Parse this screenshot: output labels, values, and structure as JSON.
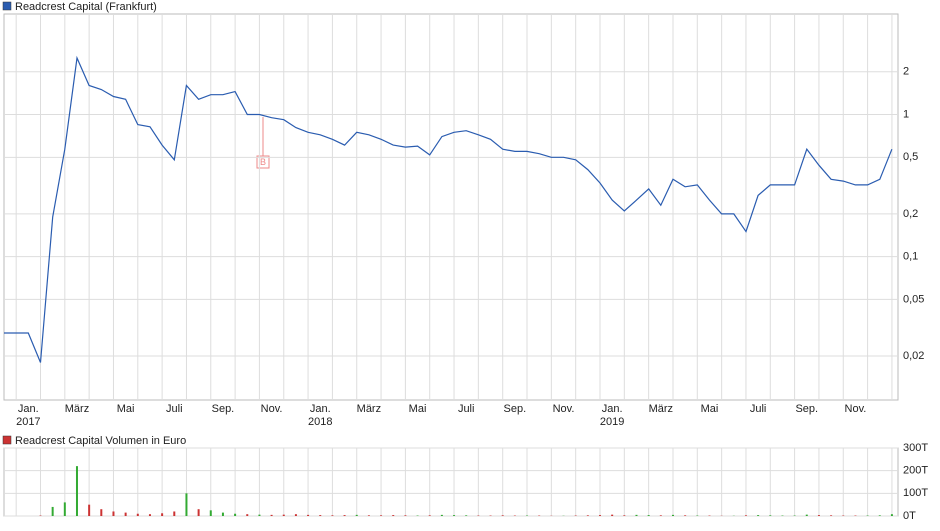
{
  "chart_data": [
    {
      "type": "line",
      "title": "Readcrest Capital (Frankfurt)",
      "annotation": "B",
      "categories": [
        null,
        null,
        "Jan.",
        null,
        null,
        null,
        "März",
        null,
        null,
        null,
        "Mai",
        null,
        null,
        null,
        "Juli",
        null,
        null,
        null,
        "Sep.",
        null,
        null,
        null,
        "Nov.",
        null,
        null,
        null,
        "Jan.",
        null,
        null,
        null,
        "März",
        null,
        null,
        null,
        "Mai",
        null,
        null,
        null,
        "Juli",
        null,
        null,
        null,
        "Sep.",
        null,
        null,
        null,
        "Nov.",
        null,
        null,
        null,
        "Jan.",
        null,
        null,
        null,
        "März",
        null,
        null,
        null,
        "Mai",
        null,
        null,
        null,
        "Juli",
        null,
        null,
        null,
        "Sep.",
        null,
        null,
        null,
        "Nov.",
        null,
        null,
        null
      ],
      "year_labels": [
        "2017",
        "2018",
        "2019"
      ],
      "series": [
        {
          "name": "Readcrest Capital (Frankfurt)",
          "color": "#2a5cb0",
          "values": [
            0.029,
            0.029,
            0.029,
            0.018,
            0.19,
            0.57,
            2.5,
            1.6,
            1.5,
            1.34,
            1.28,
            0.85,
            0.82,
            0.61,
            0.48,
            1.6,
            1.28,
            1.38,
            1.38,
            1.45,
            1.0,
            1.0,
            0.95,
            0.92,
            0.81,
            0.75,
            0.72,
            0.67,
            0.61,
            0.75,
            0.72,
            0.67,
            0.61,
            0.59,
            0.6,
            0.52,
            0.7,
            0.75,
            0.77,
            0.72,
            0.67,
            0.57,
            0.55,
            0.55,
            0.53,
            0.5,
            0.5,
            0.48,
            0.41,
            0.33,
            0.25,
            0.21,
            0.25,
            0.3,
            0.23,
            0.35,
            0.31,
            0.32,
            0.25,
            0.2,
            0.2,
            0.15,
            0.27,
            0.32,
            0.32,
            0.32,
            0.57,
            0.44,
            0.35,
            0.34,
            0.32,
            0.32,
            0.35,
            0.57
          ]
        }
      ],
      "log_scale": true,
      "grid": true,
      "ylim": [
        0.0098,
        5.1
      ],
      "yticks": [
        2,
        1,
        {
          "value": 0.5,
          "label": "0,5"
        },
        {
          "value": 0.2,
          "label": "0,2"
        },
        {
          "value": 0.1,
          "label": "0,1"
        },
        {
          "value": 0.05,
          "label": "0,05"
        },
        {
          "value": 0.02,
          "label": "0,02"
        }
      ]
    },
    {
      "type": "bar",
      "title": "Readcrest Capital Volumen in Euro",
      "color": "#cc3333",
      "up_color": "#33aa33",
      "values": [
        0,
        0,
        0,
        2000,
        40000,
        60000,
        220000,
        50000,
        30000,
        20000,
        15000,
        10000,
        8000,
        12000,
        20000,
        100000,
        30000,
        25000,
        15000,
        10000,
        8000,
        6000,
        5000,
        6000,
        8000,
        5000,
        4000,
        3000,
        4000,
        5000,
        3000,
        3000,
        4000,
        3000,
        2000,
        3000,
        5000,
        4000,
        3000,
        2000,
        2000,
        3000,
        2000,
        2000,
        2000,
        1000,
        1000,
        2000,
        3000,
        4000,
        6000,
        3000,
        5000,
        4000,
        3000,
        5000,
        3000,
        2000,
        2000,
        1000,
        1000,
        3000,
        4000,
        3000,
        2000,
        2000,
        6000,
        4000,
        3000,
        2000,
        2000,
        2000,
        3000,
        8000
      ],
      "grid": true,
      "ylim": [
        0,
        300000
      ],
      "yticks": [
        {
          "value": 0,
          "label": "0T"
        },
        {
          "value": 100000,
          "label": "100T"
        },
        {
          "value": 200000,
          "label": "200T"
        },
        {
          "value": 300000,
          "label": "300T"
        }
      ]
    }
  ]
}
